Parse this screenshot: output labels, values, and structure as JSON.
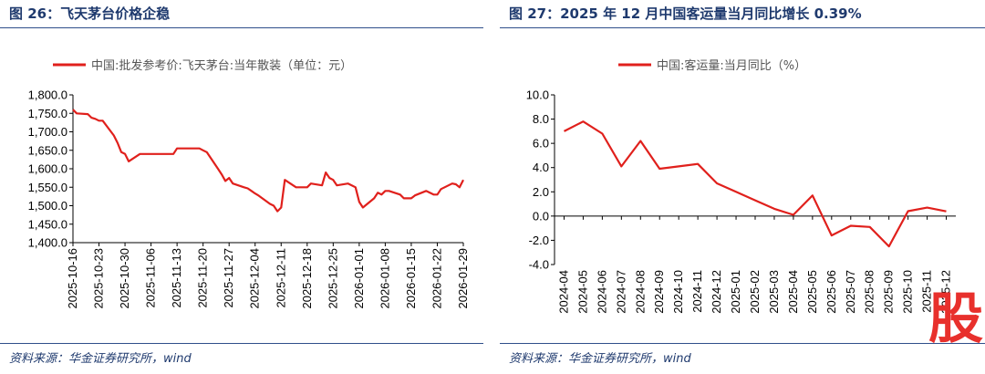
{
  "figures": [
    {
      "title": "图 26：飞天茅台价格企稳",
      "source": "资料来源：华金证券研究所，wind",
      "chart_data": {
        "type": "line",
        "legend": "中国:批发参考价:飞天茅台:当年散装（单位：元）",
        "color": "#e0201c",
        "y_ticks": [
          "1,800.0",
          "1,750.0",
          "1,700.0",
          "1,650.0",
          "1,600.0",
          "1,550.0",
          "1,500.0",
          "1,450.0",
          "1,400.0"
        ],
        "ylim": [
          1400,
          1800
        ],
        "x_ticks": [
          "2025-10-16",
          "2025-10-23",
          "2025-10-30",
          "2025-11-06",
          "2025-11-13",
          "2025-11-20",
          "2025-11-27",
          "2025-12-04",
          "2025-12-11",
          "2025-12-18",
          "2025-12-25",
          "2026-01-01",
          "2026-01-08",
          "2026-01-15",
          "2026-01-22",
          "2026-01-29"
        ],
        "x_start": "2025-10-16",
        "x_end": "2026-01-29",
        "series": [
          {
            "x": [
              "2025-10-16",
              "2025-10-17",
              "2025-10-20",
              "2025-10-21",
              "2025-10-22",
              "2025-10-23",
              "2025-10-24",
              "2025-10-27",
              "2025-10-28",
              "2025-10-29",
              "2025-10-30",
              "2025-10-31",
              "2025-11-03",
              "2025-11-04",
              "2025-11-05",
              "2025-11-06",
              "2025-11-07",
              "2025-11-10",
              "2025-11-11",
              "2025-11-12",
              "2025-11-13",
              "2025-11-14",
              "2025-11-17",
              "2025-11-18",
              "2025-11-19",
              "2025-11-20",
              "2025-11-21",
              "2025-11-24",
              "2025-11-25",
              "2025-11-26",
              "2025-11-27",
              "2025-11-28",
              "2025-12-01",
              "2025-12-02",
              "2025-12-03",
              "2025-12-04",
              "2025-12-05",
              "2025-12-08",
              "2025-12-09",
              "2025-12-10",
              "2025-12-11",
              "2025-12-12",
              "2025-12-15",
              "2025-12-16",
              "2025-12-17",
              "2025-12-18",
              "2025-12-19",
              "2025-12-22",
              "2025-12-23",
              "2025-12-24",
              "2025-12-25",
              "2025-12-26",
              "2025-12-29",
              "2025-12-30",
              "2025-12-31",
              "2026-01-01",
              "2026-01-02",
              "2026-01-05",
              "2026-01-06",
              "2026-01-07",
              "2026-01-08",
              "2026-01-09",
              "2026-01-12",
              "2026-01-13",
              "2026-01-14",
              "2026-01-15",
              "2026-01-16",
              "2026-01-19",
              "2026-01-20",
              "2026-01-21",
              "2026-01-22",
              "2026-01-23",
              "2026-01-26",
              "2026-01-27",
              "2026-01-28",
              "2026-01-29"
            ],
            "y": [
              1760,
              1750,
              1748,
              1738,
              1735,
              1730,
              1730,
              1690,
              1670,
              1645,
              1640,
              1620,
              1640,
              1640,
              1640,
              1640,
              1640,
              1640,
              1640,
              1640,
              1655,
              1655,
              1655,
              1655,
              1655,
              1650,
              1645,
              1600,
              1585,
              1567,
              1575,
              1560,
              1550,
              1547,
              1540,
              1533,
              1527,
              1505,
              1500,
              1485,
              1495,
              1570,
              1550,
              1550,
              1550,
              1550,
              1560,
              1555,
              1590,
              1575,
              1570,
              1555,
              1560,
              1555,
              1550,
              1510,
              1495,
              1520,
              1535,
              1530,
              1540,
              1540,
              1530,
              1520,
              1520,
              1520,
              1528,
              1540,
              1535,
              1530,
              1530,
              1545,
              1560,
              1558,
              1550,
              1570
            ]
          }
        ]
      }
    },
    {
      "title": "图 27：2025 年 12 月中国客运量当月同比增长 0.39%",
      "source": "资料来源：华金证券研究所，wind",
      "chart_data": {
        "type": "line",
        "legend": "中国:客运量:当月同比（%）",
        "color": "#e0201c",
        "y_ticks": [
          "10.0",
          "8.0",
          "6.0",
          "4.0",
          "2.0",
          "0.0",
          "-2.0",
          "-4.0"
        ],
        "ylim": [
          -4,
          10
        ],
        "categories": [
          "2024-04",
          "2024-05",
          "2024-06",
          "2024-07",
          "2024-08",
          "2024-09",
          "2024-10",
          "2024-11",
          "2024-12",
          "2025-01",
          "2025-02",
          "2025-03",
          "2025-04",
          "2025-05",
          "2025-06",
          "2025-07",
          "2025-08",
          "2025-09",
          "2025-10",
          "2025-11",
          "2025-12"
        ],
        "values": [
          7.0,
          7.8,
          6.8,
          4.1,
          6.2,
          3.9,
          4.1,
          4.3,
          2.7,
          2.0,
          1.3,
          0.6,
          0.1,
          1.7,
          -1.6,
          -0.8,
          -0.9,
          -2.5,
          0.4,
          0.7,
          0.39
        ]
      }
    }
  ],
  "watermark": {
    "text": "股",
    "color": "#e8302c"
  }
}
